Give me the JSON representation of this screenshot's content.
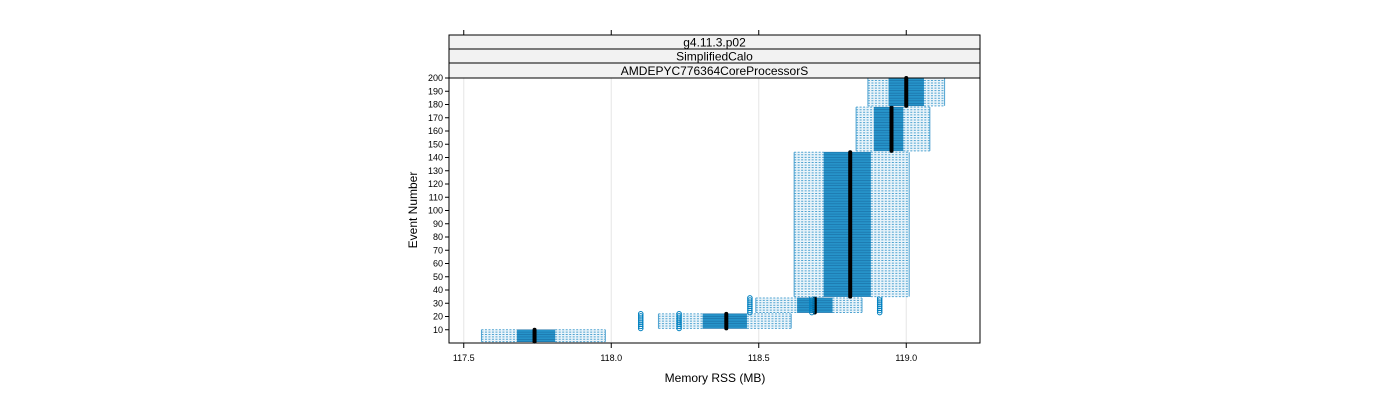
{
  "chart_data": {
    "type": "box-and-whisker",
    "strips": [
      "g4.11.3.p02",
      "SimplifiedCalo",
      "AMDEPYC776364CoreProcessorS"
    ],
    "xlabel": "Memory RSS (MB)",
    "ylabel": "Event Number",
    "xlim": [
      117.45,
      119.25
    ],
    "ylim": [
      0,
      200
    ],
    "x_ticks": [
      117.5,
      118.0,
      118.5,
      119.0
    ],
    "x_tick_labels": [
      "117.5",
      "118.0",
      "118.5",
      "119.0"
    ],
    "y_ticks": [
      10,
      20,
      30,
      40,
      50,
      60,
      70,
      80,
      90,
      100,
      110,
      120,
      130,
      140,
      150,
      160,
      170,
      180,
      190,
      200
    ],
    "y_tick_labels": [
      "10",
      "20",
      "30",
      "40",
      "50",
      "60",
      "70",
      "80",
      "90",
      "100",
      "110",
      "120",
      "130",
      "140",
      "150",
      "160",
      "170",
      "180",
      "190",
      "200"
    ],
    "grid_x": true,
    "colors": {
      "box": "#0080c0",
      "whisker": "#4fa3d1",
      "median": "#000000",
      "strip_bg": "#f2f2f2"
    },
    "groups": [
      {
        "ymin": 1,
        "ymax": 10,
        "whisker_lo": 117.56,
        "q1": 117.68,
        "median": 117.74,
        "q3": 117.81,
        "whisker_hi": 117.98,
        "outliers": []
      },
      {
        "ymin": 11,
        "ymax": 22,
        "whisker_lo": 118.16,
        "q1": 118.31,
        "median": 118.39,
        "q3": 118.46,
        "whisker_hi": 118.61,
        "outliers": [
          118.1,
          118.23
        ]
      },
      {
        "ymin": 23,
        "ymax": 34,
        "whisker_lo": 118.49,
        "q1": 118.63,
        "median": 118.69,
        "q3": 118.75,
        "whisker_hi": 118.85,
        "outliers": [
          118.47,
          118.68,
          118.91
        ]
      },
      {
        "ymin": 35,
        "ymax": 144,
        "whisker_lo": 118.62,
        "q1": 118.72,
        "median": 118.81,
        "q3": 118.88,
        "whisker_hi": 119.01,
        "outliers": []
      },
      {
        "ymin": 145,
        "ymax": 178,
        "whisker_lo": 118.83,
        "q1": 118.89,
        "median": 118.95,
        "q3": 118.99,
        "whisker_hi": 119.08,
        "outliers": []
      },
      {
        "ymin": 179,
        "ymax": 200,
        "whisker_lo": 118.87,
        "q1": 118.94,
        "median": 119.0,
        "q3": 119.06,
        "whisker_hi": 119.13,
        "outliers": []
      }
    ]
  }
}
